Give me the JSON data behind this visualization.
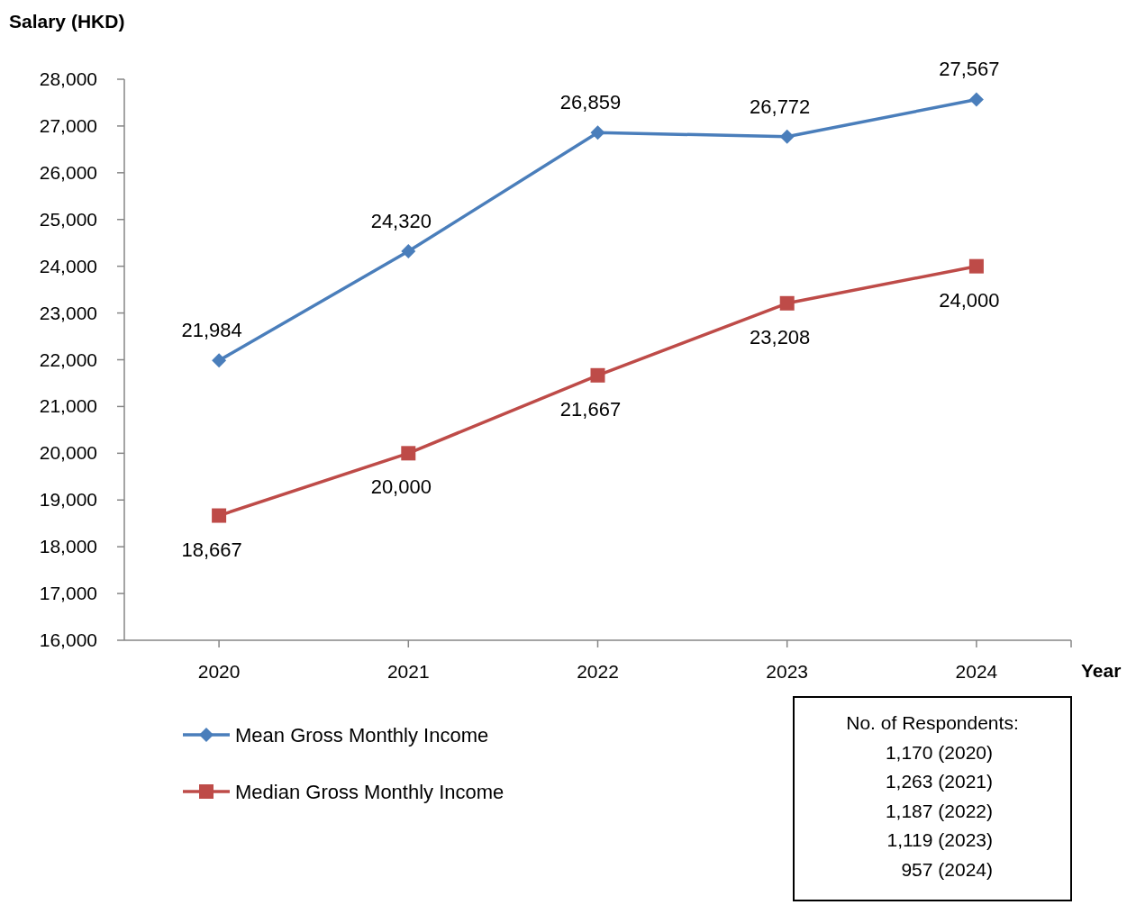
{
  "chart_data": {
    "type": "line",
    "ylabel": "Salary (HKD)",
    "xlabel": "Year",
    "categories": [
      "2020",
      "2021",
      "2022",
      "2023",
      "2024"
    ],
    "series": [
      {
        "name": "Mean Gross Monthly Income",
        "color": "#4a7ebb",
        "marker": "diamond",
        "values": [
          21984,
          24320,
          26859,
          26772,
          27567
        ],
        "value_labels": [
          "21,984",
          "24,320",
          "26,859",
          "26,772",
          "27,567"
        ]
      },
      {
        "name": "Median Gross Monthly Income",
        "color": "#be4b48",
        "marker": "square",
        "values": [
          18667,
          20000,
          21667,
          23208,
          24000
        ],
        "value_labels": [
          "18,667",
          "20,000",
          "21,667",
          "23,208",
          "24,000"
        ]
      }
    ],
    "ylim": [
      16000,
      28000
    ],
    "yticks": [
      {
        "value": 16000,
        "label": "16,000"
      },
      {
        "value": 17000,
        "label": "17,000"
      },
      {
        "value": 18000,
        "label": "18,000"
      },
      {
        "value": 19000,
        "label": "19,000"
      },
      {
        "value": 20000,
        "label": "20,000"
      },
      {
        "value": 21000,
        "label": "21,000"
      },
      {
        "value": 22000,
        "label": "22,000"
      },
      {
        "value": 23000,
        "label": "23,000"
      },
      {
        "value": 24000,
        "label": "24,000"
      },
      {
        "value": 25000,
        "label": "25,000"
      },
      {
        "value": 26000,
        "label": "26,000"
      },
      {
        "value": 27000,
        "label": "27,000"
      },
      {
        "value": 28000,
        "label": "28,000"
      }
    ],
    "grid": false,
    "legend": "bottom left",
    "line_style": "solid",
    "annotations": [
      "No. of Respondents:",
      "1,170 (2020)",
      "1,263 (2021)",
      "1,187 (2022)",
      "1,119 (2023)",
      "957 (2024)"
    ]
  }
}
